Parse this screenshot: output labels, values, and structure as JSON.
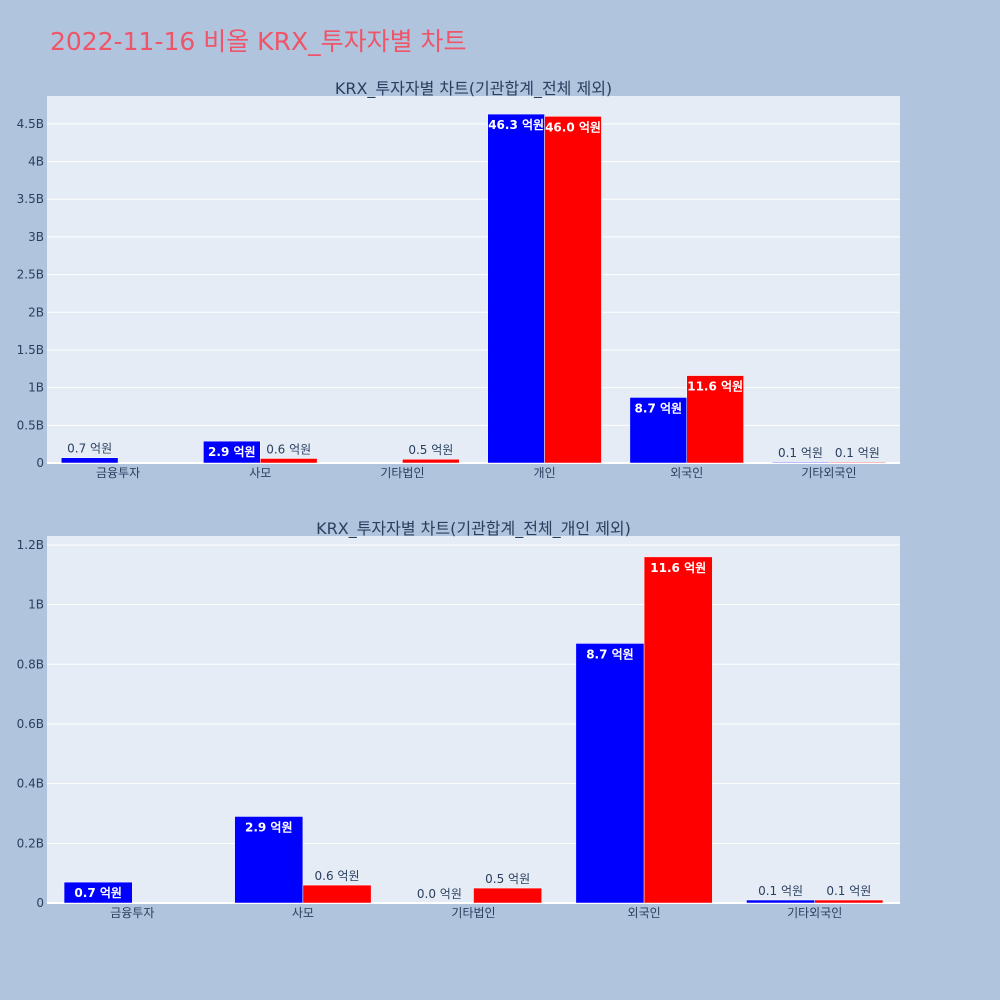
{
  "page": {
    "title": "2022-11-16 비올 KRX_투자자별 차트"
  },
  "chart_data": [
    {
      "type": "bar",
      "title": "KRX_투자자별 차트(기관합계_전체 제외)",
      "categories": [
        "금융투자",
        "사모",
        "기타법인",
        "개인",
        "외국인",
        "기타외국인"
      ],
      "series": [
        {
          "color": "#0000ff",
          "values": [
            70000000,
            290000000,
            0,
            4630000000,
            870000000,
            10000000
          ],
          "labels": [
            "0.7 억원",
            "2.9 억원",
            "",
            "46.3 억원",
            "8.7 억원",
            "0.1 억원"
          ]
        },
        {
          "color": "#ff0000",
          "values": [
            0,
            60000000,
            50000000,
            4600000000,
            1160000000,
            10000000
          ],
          "labels": [
            "",
            "0.6 억원",
            "0.5 억원",
            "46.0 억원",
            "11.6 억원",
            "0.1 억원"
          ]
        }
      ],
      "ylim": [
        0,
        4870000000
      ],
      "yticks": [
        0,
        500000000,
        1000000000,
        1500000000,
        2000000000,
        2500000000,
        3000000000,
        3500000000,
        4000000000,
        4500000000
      ],
      "yticklabels": [
        "0",
        "0.5B",
        "1B",
        "1.5B",
        "2B",
        "2.5B",
        "3B",
        "3.5B",
        "4B",
        "4.5B"
      ],
      "grid": true
    },
    {
      "type": "bar",
      "title": "KRX_투자자별 차트(기관합계_전체_개인 제외)",
      "categories": [
        "금융투자",
        "사모",
        "기타법인",
        "외국인",
        "기타외국인"
      ],
      "series": [
        {
          "color": "#0000ff",
          "values": [
            70000000,
            290000000,
            0,
            870000000,
            10000000
          ],
          "labels": [
            "0.7 억원",
            "2.9 억원",
            "0.0 억원",
            "8.7 억원",
            "0.1 억원"
          ]
        },
        {
          "color": "#ff0000",
          "values": [
            0,
            60000000,
            50000000,
            1160000000,
            10000000
          ],
          "labels": [
            "",
            "0.6 억원",
            "0.5 억원",
            "11.6 억원",
            "0.1 억원"
          ]
        }
      ],
      "ylim": [
        0,
        1230000000
      ],
      "yticks": [
        0,
        200000000,
        400000000,
        600000000,
        800000000,
        1000000000,
        1200000000
      ],
      "yticklabels": [
        "0",
        "0.2B",
        "0.4B",
        "0.6B",
        "0.8B",
        "1B",
        "1.2B"
      ],
      "grid": true
    }
  ]
}
